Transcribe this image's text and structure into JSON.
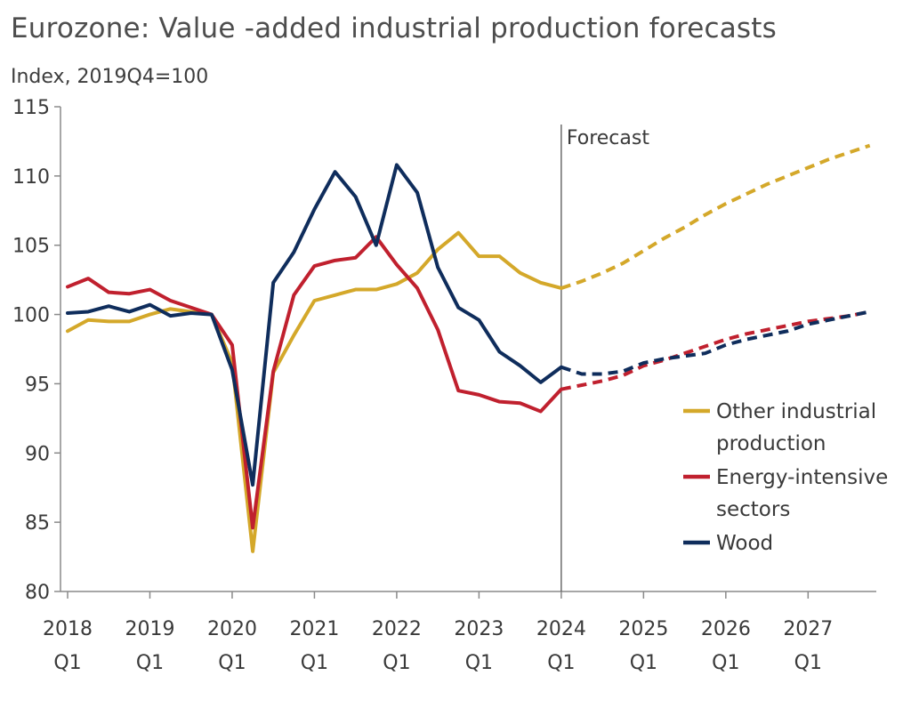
{
  "chart_data": {
    "type": "line",
    "title": "Eurozone: Value -added industrial production forecasts",
    "ylabel": "Index, 2019Q4=100",
    "ylim": [
      80,
      115
    ],
    "yticks": [
      80,
      85,
      90,
      95,
      100,
      105,
      110,
      115
    ],
    "x_start_quarter": "2018 Q1",
    "x_tick_labels": [
      [
        "2018",
        "Q1"
      ],
      [
        "2019",
        "Q1"
      ],
      [
        "2020",
        "Q1"
      ],
      [
        "2021",
        "Q1"
      ],
      [
        "2022",
        "Q1"
      ],
      [
        "2023",
        "Q1"
      ],
      [
        "2024",
        "Q1"
      ],
      [
        "2025",
        "Q1"
      ],
      [
        "2026",
        "Q1"
      ],
      [
        "2027",
        "Q1"
      ]
    ],
    "forecast_marker": {
      "label": "Forecast",
      "x": "2024 Q1"
    },
    "legend_position": "right",
    "series": [
      {
        "name": "Other industrial production",
        "legend_lines": [
          "Other industrial",
          "production"
        ],
        "color": "#D4A82A",
        "actual": [
          98.8,
          99.6,
          99.5,
          99.5,
          100.0,
          100.4,
          100.2,
          100.0,
          96.5,
          82.9,
          95.8,
          98.5,
          101.0,
          101.4,
          101.8,
          101.8,
          102.2,
          103.0,
          104.7,
          105.9,
          104.2,
          104.2,
          103.0,
          102.3,
          101.9
        ],
        "forecast": [
          101.9,
          102.4,
          103.0,
          103.7,
          104.6,
          105.5,
          106.3,
          107.2,
          108.0,
          108.7,
          109.4,
          110.0,
          110.6,
          111.2,
          111.7,
          112.2
        ]
      },
      {
        "name": "Energy-intensive sectors",
        "legend_lines": [
          "Energy-intensive",
          "sectors"
        ],
        "color": "#C0202E",
        "actual": [
          102.0,
          102.6,
          101.6,
          101.5,
          101.8,
          101.0,
          100.5,
          100.0,
          97.8,
          84.6,
          95.9,
          101.4,
          103.5,
          103.9,
          104.1,
          105.6,
          103.6,
          101.9,
          98.9,
          94.5,
          94.2,
          93.7,
          93.6,
          93.0,
          94.6
        ],
        "forecast": [
          94.6,
          94.9,
          95.2,
          95.6,
          96.3,
          96.7,
          97.2,
          97.7,
          98.2,
          98.6,
          98.9,
          99.2,
          99.5,
          99.7,
          99.9,
          100.2
        ]
      },
      {
        "name": "Wood",
        "legend_lines": [
          "Wood"
        ],
        "color": "#0F2D5C",
        "actual": [
          100.1,
          100.2,
          100.6,
          100.2,
          100.7,
          99.9,
          100.1,
          100.0,
          96.0,
          87.7,
          102.3,
          104.5,
          107.6,
          110.3,
          108.5,
          105.0,
          110.8,
          108.8,
          103.4,
          100.5,
          99.6,
          97.3,
          96.3,
          95.1,
          96.2
        ],
        "forecast": [
          96.2,
          95.7,
          95.7,
          95.9,
          96.5,
          96.8,
          97.0,
          97.2,
          97.8,
          98.2,
          98.5,
          98.8,
          99.3,
          99.6,
          99.9,
          100.2
        ]
      }
    ]
  }
}
